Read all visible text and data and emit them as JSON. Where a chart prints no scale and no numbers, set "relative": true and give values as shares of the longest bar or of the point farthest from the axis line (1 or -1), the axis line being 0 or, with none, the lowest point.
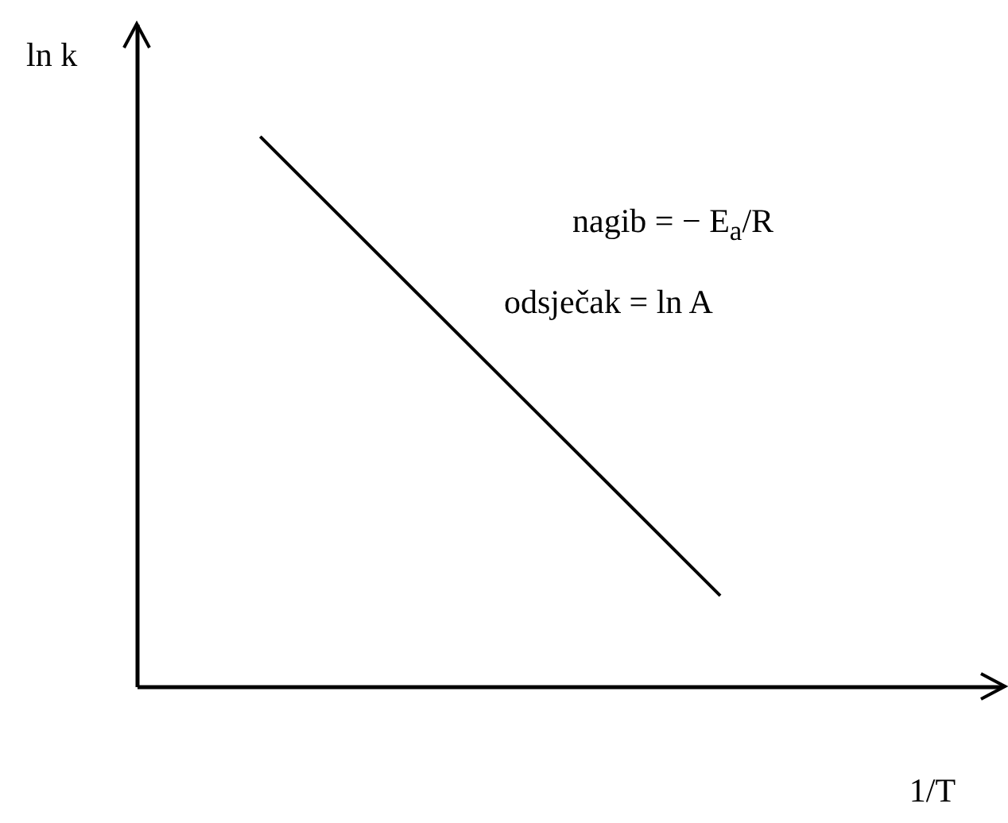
{
  "chart_data": {
    "type": "line",
    "relative": true,
    "xlabel": "1/T",
    "ylabel": "ln k",
    "categories": [
      null,
      null
    ],
    "series": [
      {
        "color": "#000000",
        "values": [
          1,
          0.165
        ]
      }
    ],
    "annotations": [
      "nagib = − E$_{a}$/R",
      "odsječak = ln A"
    ]
  }
}
